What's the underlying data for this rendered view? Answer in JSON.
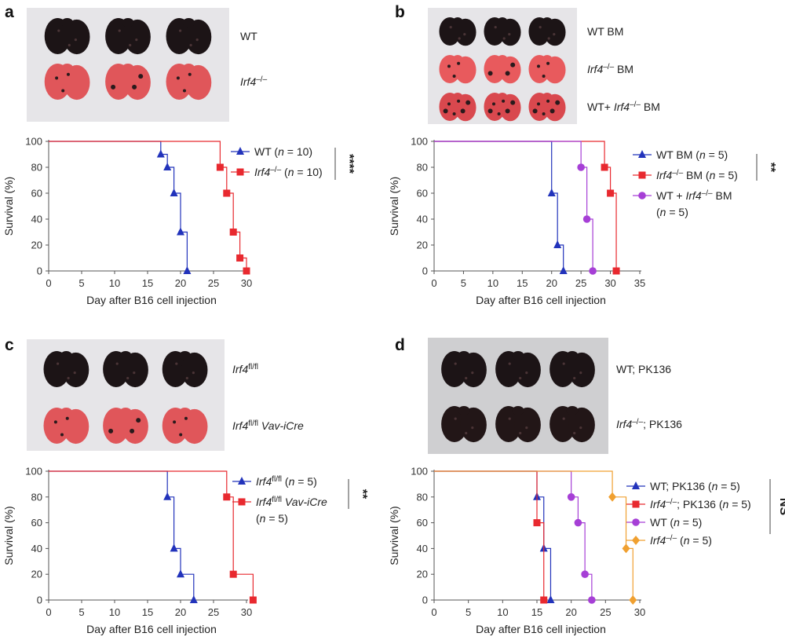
{
  "figure": {
    "panels": [
      {
        "id": "a",
        "letter": "a",
        "photo": {
          "background": "#e6e5e8",
          "rows": [
            {
              "label": "WT",
              "italic": false,
              "color": "#1c1416"
            },
            {
              "label": "Irf4⁻/⁻",
              "italic": true,
              "color": "#e0565a"
            }
          ]
        }
      },
      {
        "id": "b",
        "letter": "b",
        "photo": {
          "background": "#e6e5e8",
          "rows": [
            {
              "label": "WT BM",
              "italic": false,
              "color": "#1c1416"
            },
            {
              "label": "Irf4⁻/⁻ BM",
              "italic": true,
              "color": "#e85a5d"
            },
            {
              "label": "WT+ Irf4⁻/⁻ BM",
              "italic": false,
              "color": "#d9484e"
            }
          ]
        }
      },
      {
        "id": "c",
        "letter": "c",
        "photo": {
          "background": "#e6e5e8",
          "rows": [
            {
              "label": "Irf4fl/fl",
              "italic": true,
              "color": "#1c1416"
            },
            {
              "label": "Irf4fl/fl Vav-iCre",
              "italic": true,
              "color": "#e0565a"
            }
          ]
        }
      },
      {
        "id": "d",
        "letter": "d",
        "photo": {
          "background": "#cfcfd1",
          "rows": [
            {
              "label": "WT; PK136",
              "italic": false,
              "color": "#1c1416"
            },
            {
              "label": "Irf4⁻/⁻; PK136",
              "italic": false,
              "color": "#221617"
            }
          ]
        }
      }
    ]
  },
  "chart_data": [
    {
      "panel": "a",
      "type": "line",
      "subtype": "kaplan-meier",
      "xlabel": "Day after B16 cell injection",
      "ylabel": "Survival (%)",
      "xlim": [
        0,
        30
      ],
      "ylim": [
        0,
        100
      ],
      "xticks": [
        0,
        5,
        10,
        15,
        20,
        25,
        30
      ],
      "yticks": [
        0,
        20,
        40,
        60,
        80,
        100
      ],
      "significance": "****",
      "series": [
        {
          "name": "WT (n = 10)",
          "color": "#2233bb",
          "marker": "triangle",
          "steps": [
            [
              0,
              100
            ],
            [
              17,
              90
            ],
            [
              18,
              80
            ],
            [
              19,
              60
            ],
            [
              20,
              30
            ],
            [
              21,
              0
            ]
          ],
          "markers": [
            [
              17,
              90
            ],
            [
              18,
              80
            ],
            [
              19,
              60
            ],
            [
              20,
              30
            ],
            [
              21,
              0
            ]
          ]
        },
        {
          "name": "Irf4⁻/⁻ (n = 10)",
          "color": "#e8292f",
          "marker": "square",
          "steps": [
            [
              0,
              100
            ],
            [
              26,
              80
            ],
            [
              27,
              60
            ],
            [
              28,
              30
            ],
            [
              29,
              10
            ],
            [
              30,
              0
            ]
          ],
          "markers": [
            [
              26,
              80
            ],
            [
              27,
              60
            ],
            [
              28,
              30
            ],
            [
              29,
              10
            ],
            [
              30,
              0
            ]
          ]
        }
      ]
    },
    {
      "panel": "b",
      "type": "line",
      "subtype": "kaplan-meier",
      "xlabel": "Day after B16 cell injection",
      "ylabel": "Survival (%)",
      "xlim": [
        0,
        35
      ],
      "ylim": [
        0,
        100
      ],
      "xticks": [
        0,
        5,
        10,
        15,
        20,
        25,
        30,
        35
      ],
      "yticks": [
        0,
        20,
        40,
        60,
        80,
        100
      ],
      "significance": "**",
      "series": [
        {
          "name": "WT BM (n = 5)",
          "color": "#2233bb",
          "marker": "triangle",
          "steps": [
            [
              0,
              100
            ],
            [
              20,
              60
            ],
            [
              21,
              20
            ],
            [
              22,
              0
            ]
          ],
          "markers": [
            [
              20,
              60
            ],
            [
              21,
              20
            ],
            [
              22,
              0
            ]
          ]
        },
        {
          "name": "Irf4⁻/⁻ BM (n = 5)",
          "color": "#e8292f",
          "marker": "square",
          "steps": [
            [
              0,
              100
            ],
            [
              29,
              80
            ],
            [
              30,
              60
            ],
            [
              31,
              0
            ]
          ],
          "markers": [
            [
              29,
              80
            ],
            [
              30,
              60
            ],
            [
              31,
              0
            ]
          ]
        },
        {
          "name": "WT + Irf4⁻/⁻ BM",
          "name_line2": "(n = 5)",
          "color": "#a63fd6",
          "marker": "circle",
          "steps": [
            [
              0,
              100
            ],
            [
              25,
              80
            ],
            [
              26,
              40
            ],
            [
              27,
              0
            ]
          ],
          "markers": [
            [
              25,
              80
            ],
            [
              26,
              40
            ],
            [
              27,
              0
            ]
          ]
        }
      ]
    },
    {
      "panel": "c",
      "type": "line",
      "subtype": "kaplan-meier",
      "xlabel": "Day after B16 cell injection",
      "ylabel": "Survival (%)",
      "xlim": [
        0,
        30
      ],
      "ylim": [
        0,
        100
      ],
      "xticks": [
        0,
        5,
        10,
        15,
        20,
        25,
        30
      ],
      "yticks": [
        0,
        20,
        40,
        60,
        80,
        100
      ],
      "significance": "**",
      "series": [
        {
          "name": "Irf4fl/fl (n = 5)",
          "color": "#2233bb",
          "marker": "triangle",
          "steps": [
            [
              0,
              100
            ],
            [
              18,
              80
            ],
            [
              19,
              40
            ],
            [
              20,
              20
            ],
            [
              22,
              0
            ]
          ],
          "markers": [
            [
              18,
              80
            ],
            [
              19,
              40
            ],
            [
              20,
              20
            ],
            [
              22,
              0
            ]
          ]
        },
        {
          "name": "Irf4fl/fl Vav-iCre",
          "name_line2": "(n = 5)",
          "color": "#e8292f",
          "marker": "square",
          "steps": [
            [
              0,
              100
            ],
            [
              27,
              80
            ],
            [
              28,
              20
            ],
            [
              31,
              0
            ]
          ],
          "markers": [
            [
              27,
              80
            ],
            [
              28,
              20
            ],
            [
              31,
              0
            ]
          ]
        }
      ]
    },
    {
      "panel": "d",
      "type": "line",
      "subtype": "kaplan-meier",
      "xlabel": "Day after B16 cell injection",
      "ylabel": "Survival (%)",
      "xlim": [
        0,
        30
      ],
      "ylim": [
        0,
        100
      ],
      "xticks": [
        0,
        5,
        10,
        15,
        20,
        25,
        30
      ],
      "yticks": [
        0,
        20,
        40,
        60,
        80,
        100
      ],
      "significance": "NS",
      "series": [
        {
          "name": "WT; PK136 (n = 5)",
          "color": "#2233bb",
          "marker": "triangle",
          "steps": [
            [
              0,
              100
            ],
            [
              15,
              80
            ],
            [
              16,
              40
            ],
            [
              17,
              0
            ]
          ],
          "markers": [
            [
              15,
              80
            ],
            [
              16,
              40
            ],
            [
              17,
              0
            ]
          ]
        },
        {
          "name": "Irf4⁻/⁻; PK136 (n = 5)",
          "color": "#e8292f",
          "marker": "square",
          "steps": [
            [
              0,
              100
            ],
            [
              15,
              60
            ],
            [
              16,
              0
            ]
          ],
          "markers": [
            [
              15,
              60
            ],
            [
              16,
              0
            ]
          ]
        },
        {
          "name": "WT (n = 5)",
          "color": "#a63fd6",
          "marker": "circle",
          "steps": [
            [
              0,
              100
            ],
            [
              20,
              80
            ],
            [
              21,
              60
            ],
            [
              22,
              20
            ],
            [
              23,
              0
            ]
          ],
          "markers": [
            [
              20,
              80
            ],
            [
              21,
              60
            ],
            [
              22,
              20
            ],
            [
              23,
              0
            ]
          ]
        },
        {
          "name": "Irf4⁻/⁻ (n = 5)",
          "color": "#f0a030",
          "marker": "diamond",
          "steps": [
            [
              0,
              100
            ],
            [
              26,
              80
            ],
            [
              28,
              40
            ],
            [
              29,
              0
            ]
          ],
          "markers": [
            [
              26,
              80
            ],
            [
              28,
              40
            ],
            [
              29,
              0
            ]
          ]
        }
      ]
    }
  ]
}
